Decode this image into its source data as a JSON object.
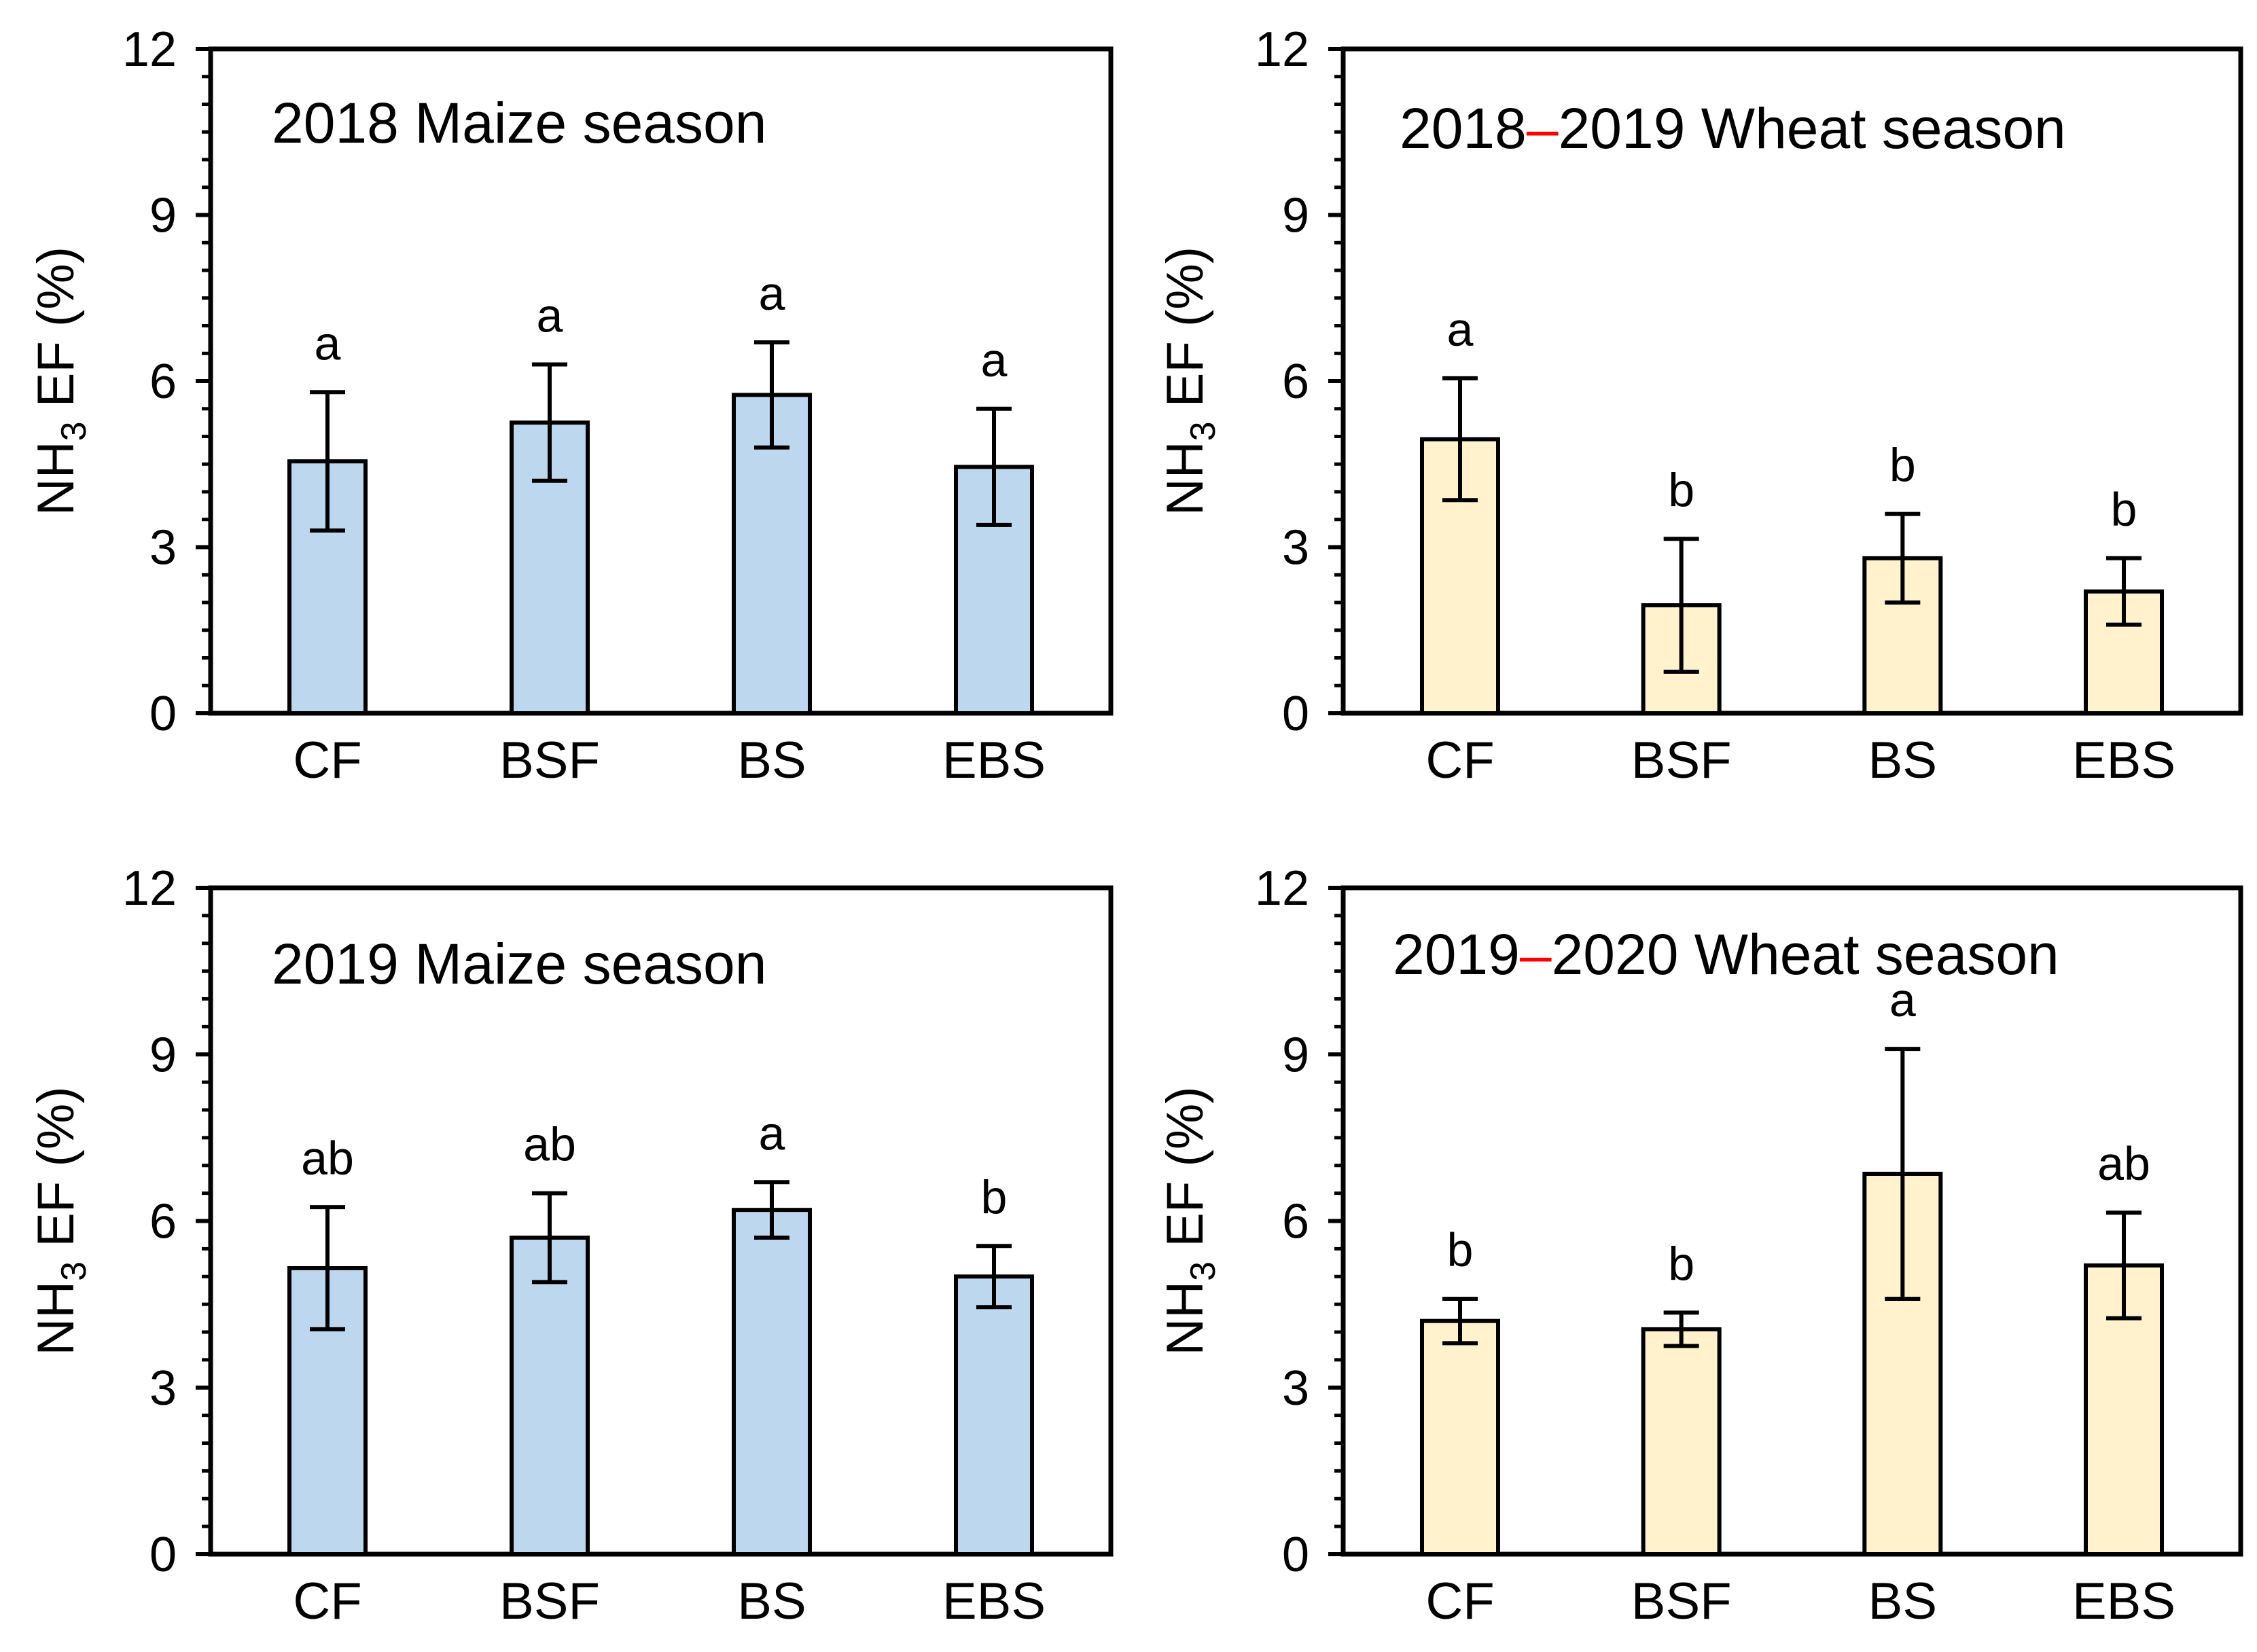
{
  "colors": {
    "maize": "#bdd7ee",
    "wheat": "#fff2cc",
    "dash": "#ff0000",
    "ink": "#000000"
  },
  "chart_data": [
    {
      "type": "bar",
      "title_parts": [
        "2018 Maize season"
      ],
      "categories": [
        "CF",
        "BSF",
        "BS",
        "EBS"
      ],
      "values": [
        4.55,
        5.25,
        5.75,
        4.45
      ],
      "errors": [
        1.25,
        1.05,
        0.95,
        1.05
      ],
      "significance": [
        "a",
        "a",
        "a",
        "a"
      ],
      "ylabel": {
        "main": "NH",
        "sub": "3",
        "rest": " EF (%)"
      },
      "ylim": [
        0,
        12
      ],
      "yticks": [
        "0",
        "3",
        "6",
        "9",
        "12"
      ],
      "fill": "maize"
    },
    {
      "type": "bar",
      "title_parts": [
        "2018",
        "–",
        "2019 Wheat season"
      ],
      "categories": [
        "CF",
        "BSF",
        "BS",
        "EBS"
      ],
      "values": [
        4.95,
        1.95,
        2.8,
        2.2
      ],
      "errors": [
        1.1,
        1.2,
        0.8,
        0.6
      ],
      "significance": [
        "a",
        "b",
        "b",
        "b"
      ],
      "ylabel": {
        "main": "NH",
        "sub": "3",
        "rest": " EF (%)"
      },
      "ylim": [
        0,
        12
      ],
      "yticks": [
        "0",
        "3",
        "6",
        "9",
        "12"
      ],
      "fill": "wheat"
    },
    {
      "type": "bar",
      "title_parts": [
        "2019 Maize season"
      ],
      "categories": [
        "CF",
        "BSF",
        "BS",
        "EBS"
      ],
      "values": [
        5.15,
        5.7,
        6.2,
        5.0
      ],
      "errors": [
        1.1,
        0.8,
        0.5,
        0.55
      ],
      "significance": [
        "ab",
        "ab",
        "a",
        "b"
      ],
      "ylabel": {
        "main": "NH",
        "sub": "3",
        "rest": " EF (%)"
      },
      "ylim": [
        0,
        12
      ],
      "yticks": [
        "0",
        "3",
        "6",
        "9",
        "12"
      ],
      "fill": "maize"
    },
    {
      "type": "bar",
      "title_parts": [
        "2019",
        "–",
        "2020 Wheat season"
      ],
      "categories": [
        "CF",
        "BSF",
        "BS",
        "EBS"
      ],
      "values": [
        4.2,
        4.05,
        6.85,
        5.2
      ],
      "errors": [
        0.4,
        0.3,
        2.25,
        0.95
      ],
      "significance": [
        "b",
        "b",
        "a",
        "ab"
      ],
      "ylabel": {
        "main": "NH",
        "sub": "3",
        "rest": " EF (%)"
      },
      "ylim": [
        0,
        12
      ],
      "yticks": [
        "0",
        "3",
        "6",
        "9",
        "12"
      ],
      "fill": "wheat"
    }
  ]
}
